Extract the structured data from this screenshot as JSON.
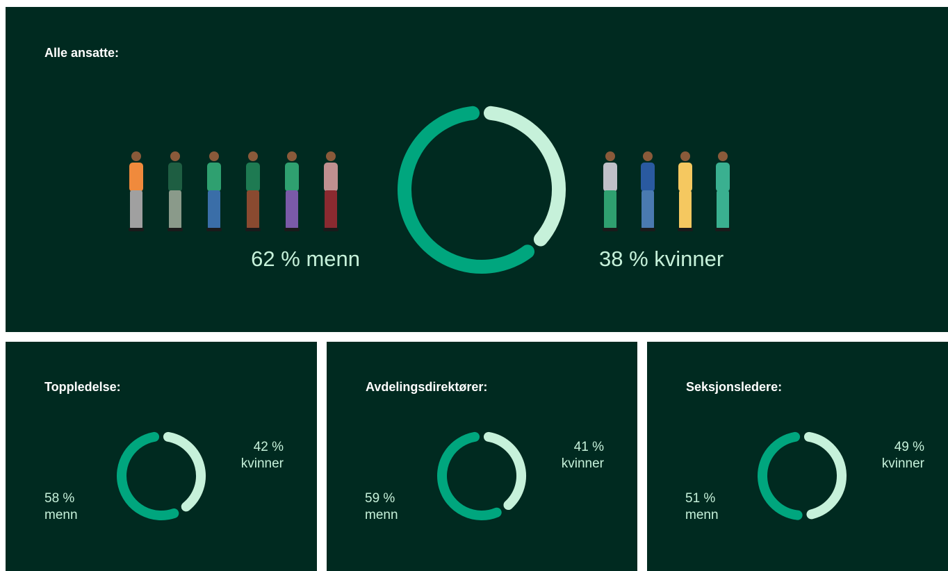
{
  "chart_data": [
    {
      "type": "donut",
      "title": "Alle ansatte:",
      "values": [
        62,
        38
      ],
      "value_labels": [
        "62 % menn",
        "38 % kvinner"
      ],
      "colors": [
        "#00a67e",
        "#c6f1da"
      ]
    },
    {
      "type": "donut",
      "title": "Toppledelse:",
      "values": [
        58,
        42
      ],
      "value_labels": [
        "58 % menn",
        "42 % kvinner"
      ],
      "colors": [
        "#00a67e",
        "#c6f1da"
      ]
    },
    {
      "type": "donut",
      "title": "Avdelingsdirektører:",
      "values": [
        59,
        41
      ],
      "value_labels": [
        "59 % menn",
        "41 % kvinner"
      ],
      "colors": [
        "#00a67e",
        "#c6f1da"
      ]
    },
    {
      "type": "donut",
      "title": "Seksjonsledere:",
      "values": [
        51,
        49
      ],
      "value_labels": [
        "51 % menn",
        "49 % kvinner"
      ],
      "colors": [
        "#00a67e",
        "#c6f1da"
      ]
    }
  ]
}
